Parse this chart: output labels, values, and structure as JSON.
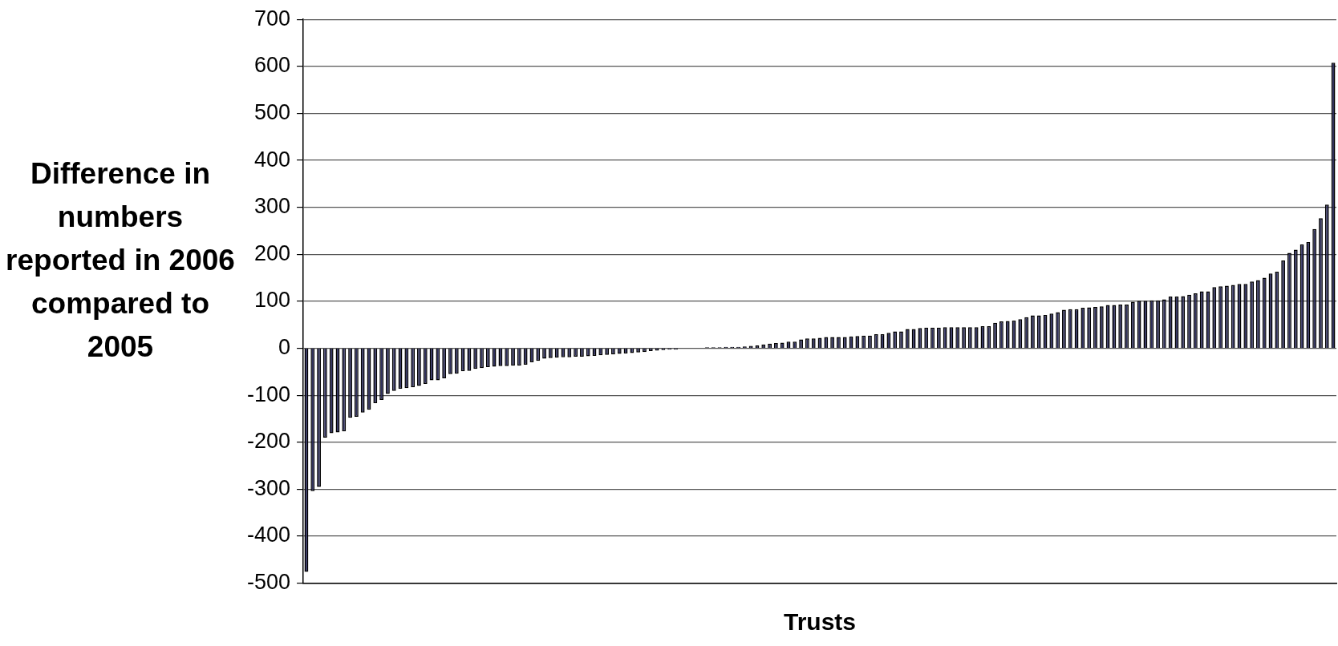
{
  "chart_data": {
    "type": "bar",
    "xlabel": "Trusts",
    "ylabel": "Difference in numbers reported in 2006 compared to 2005",
    "categories": [
      null,
      null,
      null,
      null,
      null,
      null,
      null,
      null,
      null,
      null,
      null,
      null,
      null,
      null,
      null,
      null,
      null,
      null,
      null,
      null,
      null,
      null,
      null,
      null,
      null,
      null,
      null,
      null,
      null,
      null,
      null,
      null,
      null,
      null,
      null,
      null,
      null,
      null,
      null,
      null,
      null,
      null,
      null,
      null,
      null,
      null,
      null,
      null,
      null,
      null,
      null,
      null,
      null,
      null,
      null,
      null,
      null,
      null,
      null,
      null,
      null,
      null,
      null,
      null,
      null,
      null,
      null,
      null,
      null,
      null,
      null,
      null,
      null,
      null,
      null,
      null,
      null,
      null,
      null,
      null,
      null,
      null,
      null,
      null,
      null,
      null,
      null,
      null,
      null,
      null,
      null,
      null,
      null,
      null,
      null,
      null,
      null,
      null,
      null,
      null,
      null,
      null,
      null,
      null,
      null,
      null,
      null,
      null,
      null,
      null,
      null,
      null,
      null,
      null,
      null,
      null,
      null,
      null,
      null,
      null,
      null,
      null,
      null,
      null,
      null,
      null,
      null,
      null,
      null,
      null,
      null,
      null,
      null,
      null,
      null,
      null,
      null,
      null,
      null,
      null,
      null,
      null,
      null,
      null,
      null,
      null,
      null,
      null,
      null,
      null,
      null,
      null,
      null,
      null,
      null,
      null,
      null,
      null,
      null,
      null,
      null,
      null,
      null,
      null,
      null
    ],
    "values": [
      -476,
      -304,
      -295,
      -190,
      -181,
      -179,
      -177,
      -148,
      -146,
      -137,
      -131,
      -117,
      -110,
      -97,
      -91,
      -86,
      -85,
      -83,
      -80,
      -76,
      -68,
      -68,
      -64,
      -55,
      -54,
      -49,
      -48,
      -44,
      -42,
      -40,
      -39,
      -38,
      -38,
      -37,
      -37,
      -35,
      -30,
      -27,
      -22,
      -21,
      -20,
      -19,
      -19,
      -18,
      -18,
      -17,
      -16,
      -15,
      -14,
      -13,
      -12,
      -11,
      -10,
      -9,
      -8,
      -6,
      -5,
      -4,
      -3,
      -3,
      0,
      0,
      0,
      0,
      2,
      2,
      2,
      3,
      3,
      3,
      4,
      5,
      6,
      8,
      10,
      11,
      12,
      14,
      14,
      19,
      21,
      21,
      22,
      24,
      24,
      24,
      24,
      25,
      26,
      27,
      27,
      30,
      30,
      33,
      36,
      36,
      41,
      41,
      43,
      44,
      44,
      44,
      45,
      45,
      45,
      45,
      45,
      45,
      47,
      47,
      54,
      57,
      58,
      59,
      62,
      66,
      70,
      70,
      71,
      74,
      77,
      82,
      83,
      83,
      86,
      87,
      88,
      89,
      92,
      92,
      93,
      93,
      99,
      101,
      101,
      102,
      102,
      104,
      110,
      110,
      111,
      114,
      117,
      121,
      121,
      130,
      132,
      133,
      135,
      137,
      137,
      142,
      145,
      150,
      159,
      163,
      187,
      203,
      210,
      221,
      226,
      254,
      277,
      306,
      608
    ],
    "color": "#2e2e5c",
    "ylim": [
      -500,
      700
    ],
    "yticks": [
      -500,
      -400,
      -300,
      -200,
      -100,
      0,
      100,
      200,
      300,
      400,
      500,
      600,
      700
    ],
    "grid": "y",
    "legend": false
  }
}
